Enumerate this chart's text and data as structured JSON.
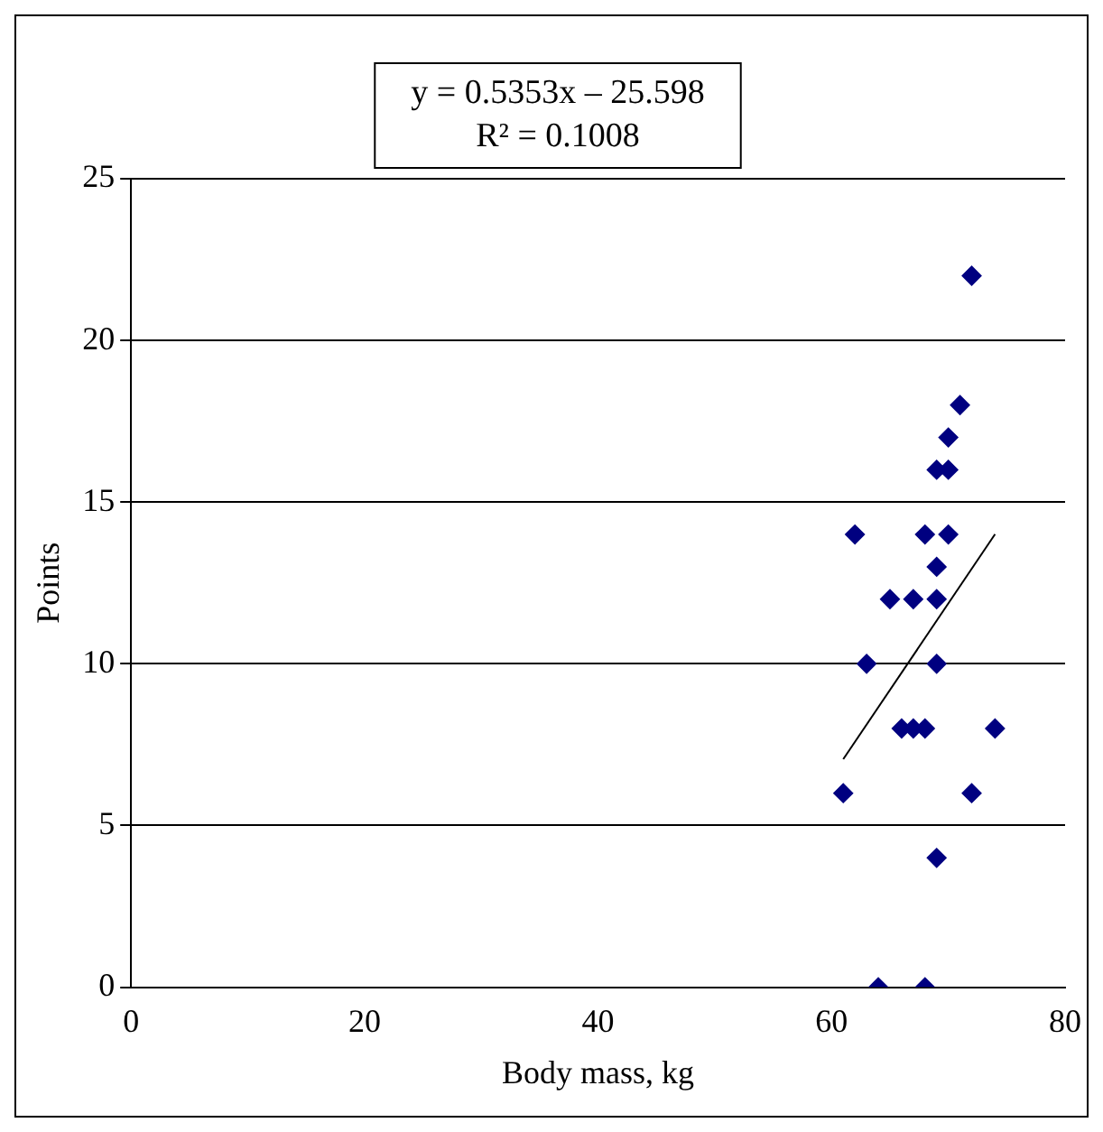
{
  "chart_data": {
    "type": "scatter",
    "xlabel": "Body mass, kg",
    "ylabel": "Points",
    "annotations": [
      "y = 0.5353x – 25.598",
      "R² = 0.1008"
    ],
    "xlim": [
      0,
      80
    ],
    "xticks": [
      0,
      20,
      40,
      60,
      80
    ],
    "ylim": [
      0,
      25
    ],
    "yticks": [
      0,
      5,
      10,
      15,
      20,
      25
    ],
    "grid": "y",
    "legend": false,
    "marker": "diamond",
    "series": [
      {
        "color": "#000080",
        "x": [
          72,
          71,
          70,
          69,
          70,
          62,
          68,
          70,
          69,
          65,
          67,
          69,
          63,
          69,
          66,
          67,
          68,
          74,
          61,
          72,
          69,
          64,
          68
        ],
        "values": [
          22,
          18,
          17,
          16,
          16,
          14,
          14,
          14,
          13,
          12,
          12,
          12,
          10,
          10,
          8,
          8,
          8,
          8,
          6,
          6,
          4,
          0,
          0
        ]
      },
      {
        "type": "line",
        "color": "#000000",
        "marker": "none",
        "x": [
          61,
          74
        ],
        "values": [
          7.05,
          14.01
        ]
      }
    ]
  }
}
